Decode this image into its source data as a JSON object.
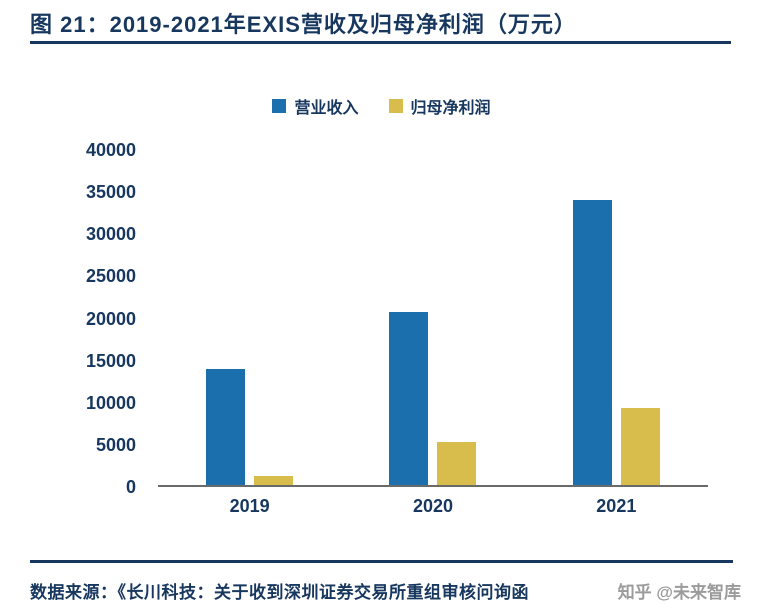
{
  "header": {
    "title": "图 21：2019-2021年EXIS营收及归母净利润（万元）"
  },
  "chart_data": {
    "type": "bar",
    "title": "2019-2021年EXIS营收及归母净利润（万元）",
    "categories": [
      "2019",
      "2020",
      "2021"
    ],
    "series": [
      {
        "name": "营业收入",
        "values": [
          13900,
          20700,
          34000
        ],
        "color": "#1C6FAD"
      },
      {
        "name": "归母净利润",
        "values": [
          1100,
          5100,
          9200
        ],
        "color": "#D8BD4C"
      }
    ],
    "xlabel": "",
    "ylabel": "",
    "ylim": [
      0,
      40000
    ],
    "ytick_step": 5000,
    "yticks": [
      0,
      5000,
      10000,
      15000,
      20000,
      25000,
      30000,
      35000,
      40000
    ],
    "grid": false,
    "legend_position": "top"
  },
  "footer": {
    "source": "数据来源：《长川科技：关于收到深圳证券交易所重组审核问询函",
    "watermark": "知乎 @未来智库"
  },
  "colors": {
    "accent_navy": "#17375E",
    "bar_blue": "#1C6FAD",
    "bar_gold": "#D8BD4C",
    "watermark_gray": "#9B9B9B"
  }
}
